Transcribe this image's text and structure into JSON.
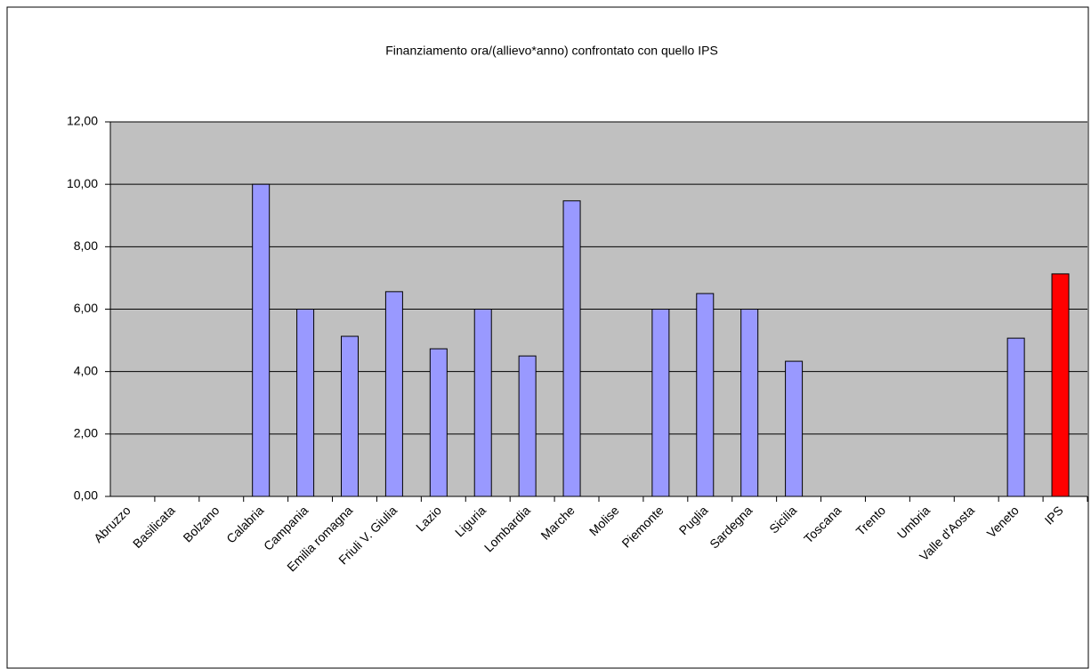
{
  "chart_data": {
    "type": "bar",
    "title": "Finanziamento ora/(allievo*anno) confrontato con quello IPS",
    "categories": [
      "Abruzzo",
      "Basilicata",
      "Bolzano",
      "Calabria",
      "Campania",
      "Emilia romagna",
      "Friuli V. Giulia",
      "Lazio",
      "Liguria",
      "Lombardia",
      "Marche",
      "Molise",
      "Piemonte",
      "Puglia",
      "Sardegna",
      "Sicilia",
      "Toscana",
      "Trento",
      "Umbria",
      "Valle d'Aosta",
      "Veneto",
      "IPS"
    ],
    "values": [
      null,
      null,
      null,
      10.0,
      6.0,
      5.13,
      6.56,
      4.73,
      6.0,
      4.5,
      9.47,
      null,
      6.0,
      6.5,
      6.0,
      4.33,
      null,
      null,
      null,
      null,
      5.07,
      7.13
    ],
    "colors": [
      "#9999ff",
      "#9999ff",
      "#9999ff",
      "#9999ff",
      "#9999ff",
      "#9999ff",
      "#9999ff",
      "#9999ff",
      "#9999ff",
      "#9999ff",
      "#9999ff",
      "#9999ff",
      "#9999ff",
      "#9999ff",
      "#9999ff",
      "#9999ff",
      "#9999ff",
      "#9999ff",
      "#9999ff",
      "#9999ff",
      "#9999ff",
      "#ff0000"
    ],
    "ylim": [
      0,
      12
    ],
    "yticks": [
      {
        "value": 0,
        "label": "0,00"
      },
      {
        "value": 2,
        "label": "2,00"
      },
      {
        "value": 4,
        "label": "4,00"
      },
      {
        "value": 6,
        "label": "6,00"
      },
      {
        "value": 8,
        "label": "8,00"
      },
      {
        "value": 10,
        "label": "10,00"
      },
      {
        "value": 12,
        "label": "12,00"
      }
    ],
    "grid": true
  }
}
